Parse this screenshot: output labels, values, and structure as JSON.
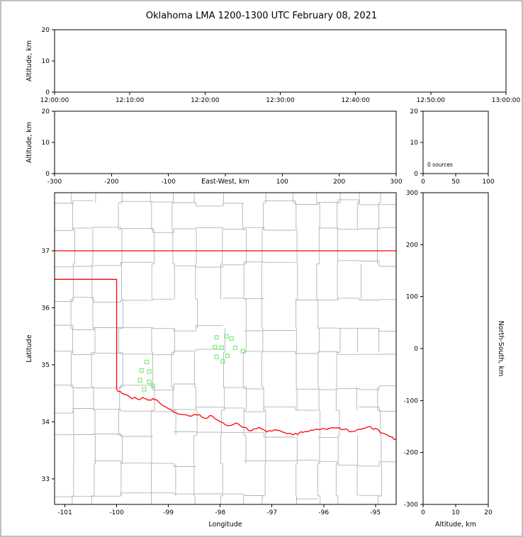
{
  "title": "Oklahoma LMA 1200-1300 UTC February 08, 2021",
  "colors": {
    "state_boundary": "#ff0000",
    "county_line": "#b3b3b3",
    "station_marker": "#7ce87c",
    "axis": "#000000",
    "figure_border": "#c0c0c0"
  },
  "chart_data": [
    {
      "id": "time_height",
      "type": "scatter",
      "ylabel": "Altitude, km",
      "xtick_labels": [
        "12:00:00",
        "12:10:00",
        "12:20:00",
        "12:30:00",
        "12:40:00",
        "12:50:00",
        "13:00:00"
      ],
      "ylim": [
        0,
        20
      ],
      "yticks": [
        0,
        10,
        20
      ],
      "points": []
    },
    {
      "id": "ew_height",
      "type": "scatter",
      "xlabel": "East-West, km",
      "ylabel": "Altitude, km",
      "xlim": [
        -300,
        300
      ],
      "xticks": [
        -300,
        -200,
        -100,
        100,
        200,
        300
      ],
      "ylim": [
        0,
        20
      ],
      "yticks": [
        0,
        10,
        20
      ],
      "points": []
    },
    {
      "id": "histogram",
      "type": "scatter",
      "annotation": "0 sources",
      "xlim": [
        0,
        100
      ],
      "xticks": [
        0,
        50,
        100
      ],
      "ylim": [
        0,
        20
      ],
      "yticks": [
        0,
        10,
        20
      ],
      "points": []
    },
    {
      "id": "map",
      "type": "scatter",
      "xlabel": "Longitude",
      "ylabel": "Latitude",
      "xlim": [
        -101.2,
        -94.6
      ],
      "xticks": [
        -101,
        -100,
        -99,
        -98,
        -97,
        -96,
        -95
      ],
      "ylim": [
        32.55,
        38.02
      ],
      "yticks": [
        33,
        34,
        35,
        36,
        37
      ],
      "stations": [
        [
          -98.07,
          35.48
        ],
        [
          -97.88,
          35.5
        ],
        [
          -97.78,
          35.46
        ],
        [
          -98.1,
          35.31
        ],
        [
          -97.97,
          35.3
        ],
        [
          -97.71,
          35.3
        ],
        [
          -97.56,
          35.24
        ],
        [
          -98.07,
          35.14
        ],
        [
          -97.86,
          35.16
        ],
        [
          -97.95,
          35.06
        ],
        [
          -99.42,
          35.05
        ],
        [
          -99.52,
          34.9
        ],
        [
          -99.37,
          34.88
        ],
        [
          -99.55,
          34.73
        ],
        [
          -99.37,
          34.7
        ],
        [
          -99.47,
          34.57
        ],
        [
          -99.3,
          34.63
        ]
      ],
      "state_boundary": {
        "north_lat": 37.0,
        "panhandle_lat": 36.5,
        "west_lon": -100.0,
        "red_river": [
          [
            -100.0,
            34.56
          ],
          [
            -99.9,
            34.5
          ],
          [
            -99.75,
            34.44
          ],
          [
            -99.6,
            34.4
          ],
          [
            -99.5,
            34.43
          ],
          [
            -99.4,
            34.38
          ],
          [
            -99.3,
            34.41
          ],
          [
            -99.2,
            34.36
          ],
          [
            -99.05,
            34.26
          ],
          [
            -98.9,
            34.17
          ],
          [
            -98.75,
            34.13
          ],
          [
            -98.6,
            34.1
          ],
          [
            -98.45,
            34.12
          ],
          [
            -98.3,
            34.06
          ],
          [
            -98.15,
            34.1
          ],
          [
            -98.0,
            34.0
          ],
          [
            -97.85,
            33.93
          ],
          [
            -97.7,
            33.98
          ],
          [
            -97.55,
            33.9
          ],
          [
            -97.4,
            33.84
          ],
          [
            -97.25,
            33.9
          ],
          [
            -97.1,
            33.82
          ],
          [
            -96.95,
            33.86
          ],
          [
            -96.8,
            33.82
          ],
          [
            -96.65,
            33.8
          ],
          [
            -96.5,
            33.78
          ],
          [
            -96.35,
            33.83
          ],
          [
            -96.2,
            33.85
          ],
          [
            -96.05,
            33.87
          ],
          [
            -95.9,
            33.88
          ],
          [
            -95.75,
            33.89
          ],
          [
            -95.6,
            33.87
          ],
          [
            -95.45,
            33.83
          ],
          [
            -95.3,
            33.87
          ],
          [
            -95.15,
            33.91
          ],
          [
            -95.0,
            33.88
          ],
          [
            -94.85,
            33.8
          ],
          [
            -94.72,
            33.74
          ],
          [
            -94.6,
            33.7
          ]
        ]
      },
      "points": []
    },
    {
      "id": "ns_height",
      "type": "scatter",
      "xlabel": "Altitude, km",
      "ylabel": "North-South, km",
      "xlim": [
        0,
        20
      ],
      "xticks": [
        0,
        10,
        20
      ],
      "ylim": [
        -300,
        300
      ],
      "yticks": [
        -300,
        -200,
        -100,
        0,
        100,
        200,
        300
      ],
      "points": []
    }
  ]
}
